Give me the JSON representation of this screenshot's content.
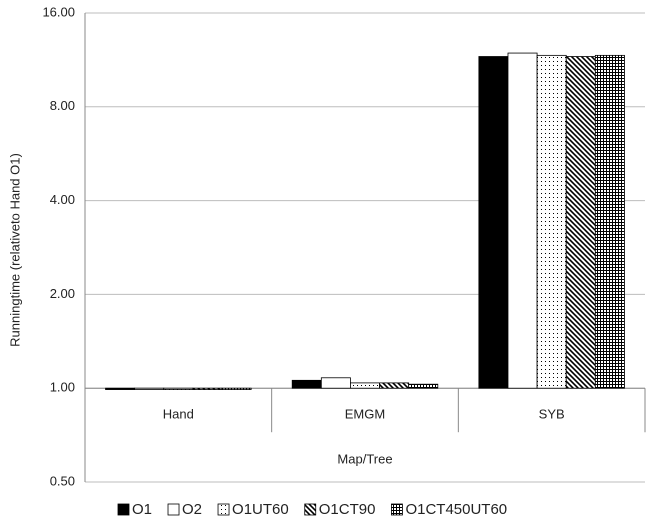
{
  "chart_data": {
    "type": "bar",
    "x_label": "Map/Tree",
    "y_label": "Runningtime (relativeto Hand O1)",
    "categories": [
      "Hand",
      "EMGM",
      "SYB"
    ],
    "series": [
      {
        "name": "O1",
        "fill": "solid",
        "values": [
          0.99,
          1.06,
          11.6
        ]
      },
      {
        "name": "O2",
        "fill": "white",
        "values": [
          0.99,
          1.08,
          11.9
        ]
      },
      {
        "name": "O1UT60",
        "fill": "dots",
        "values": [
          0.99,
          1.04,
          11.7
        ]
      },
      {
        "name": "O1CT90",
        "fill": "diagonal",
        "values": [
          0.99,
          1.04,
          11.6
        ]
      },
      {
        "name": "O1CT450UT60",
        "fill": "grid",
        "values": [
          0.99,
          1.03,
          11.7
        ]
      }
    ],
    "ylim": [
      0.5,
      16
    ],
    "log_scale": true,
    "yticks": [
      {
        "value": 0.5,
        "label": "0.50"
      },
      {
        "value": 1,
        "label": "1.00"
      },
      {
        "value": 2,
        "label": "2.00"
      },
      {
        "value": 4,
        "label": "4.00"
      },
      {
        "value": 8,
        "label": "8.00"
      },
      {
        "value": 16,
        "label": "16.00"
      }
    ],
    "grid": true,
    "legend": "bottom"
  }
}
